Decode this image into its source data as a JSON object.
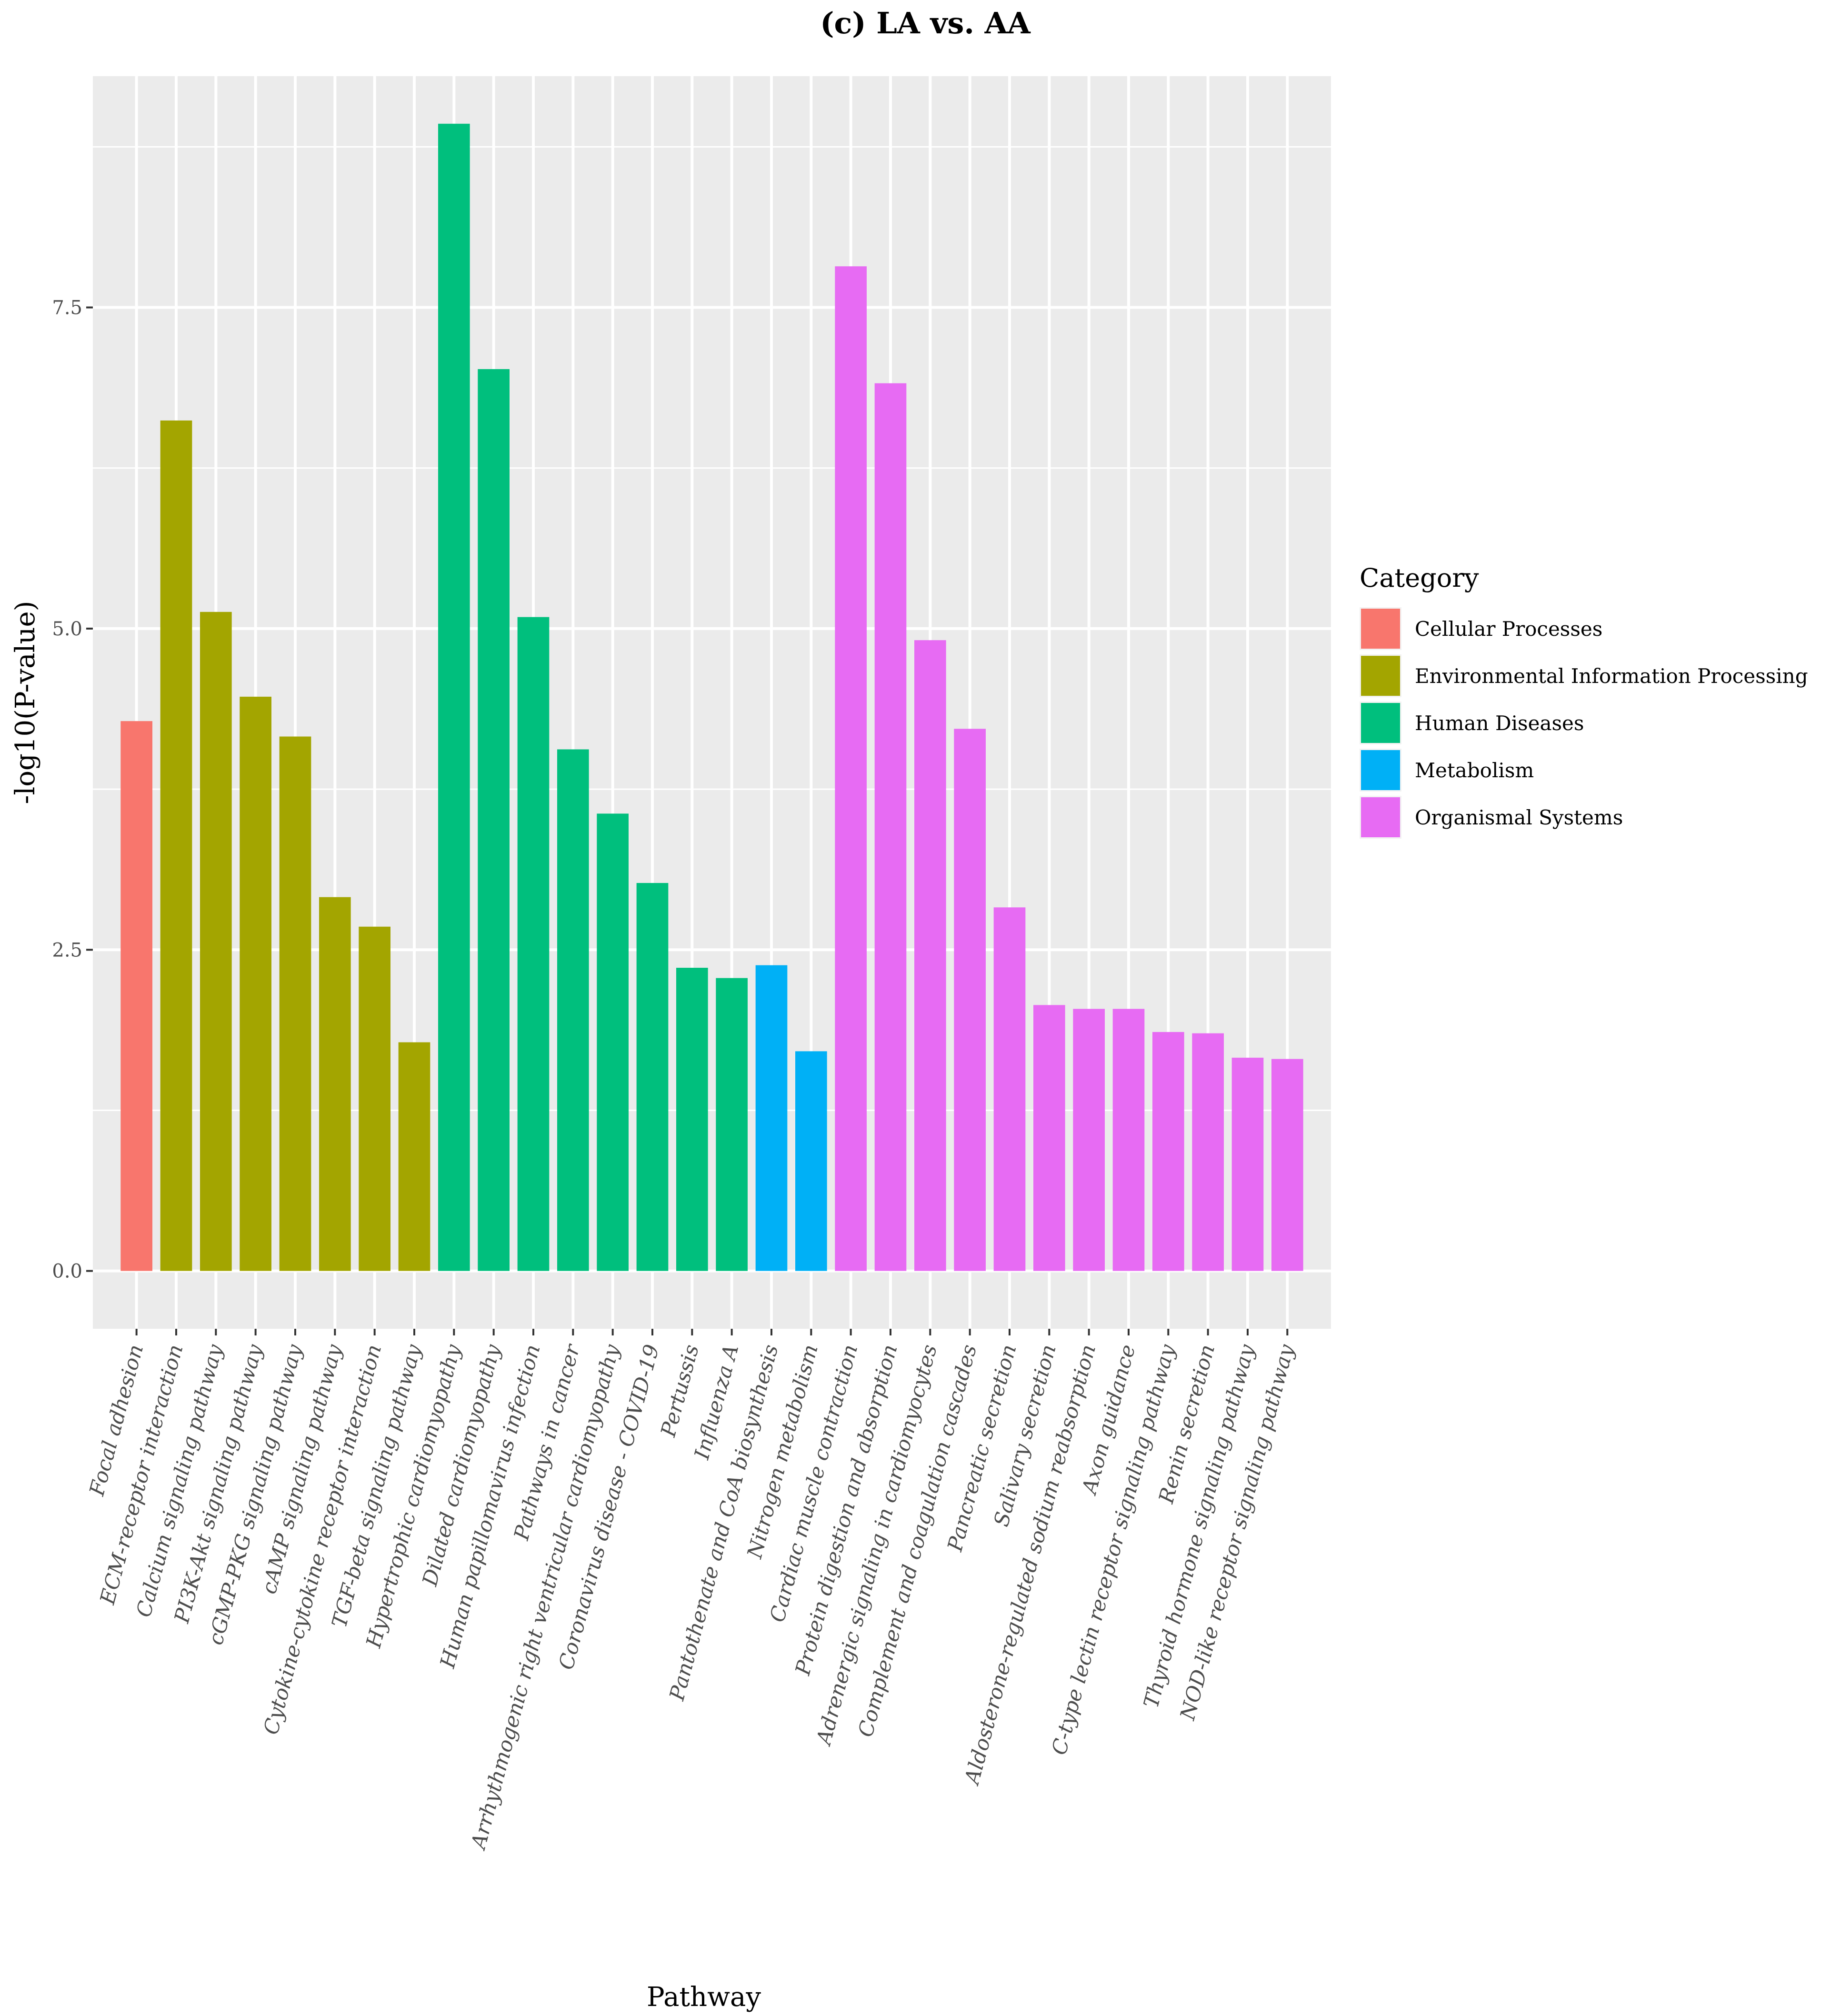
{
  "chart_data": {
    "type": "bar",
    "title": "(c) LA vs. AA",
    "xlabel": "Pathway",
    "ylabel": "-log10(P-value)",
    "ylim": [
      -0.45,
      9.3
    ],
    "yticks": [
      0.0,
      2.5,
      5.0,
      7.5
    ],
    "ytick_labels": [
      "0.0",
      "2.5",
      "5.0",
      "7.5"
    ],
    "grid": true,
    "legend": {
      "title": "Category",
      "placement": "right",
      "entries": [
        {
          "name": "Cellular Processes",
          "color": "#F8766D"
        },
        {
          "name": "Environmental Information Processing",
          "color": "#A3A500"
        },
        {
          "name": "Human Diseases",
          "color": "#00BF7D"
        },
        {
          "name": "Metabolism",
          "color": "#00B0F6"
        },
        {
          "name": "Organismal Systems",
          "color": "#E76BF3"
        }
      ]
    },
    "categories": [
      "Focal adhesion",
      "ECM-receptor interaction",
      "Calcium signaling pathway",
      "PI3K-Akt signaling pathway",
      "cGMP-PKG signaling pathway",
      "cAMP signaling pathway",
      "Cytokine-cytokine receptor interaction",
      "TGF-beta signaling pathway",
      "Hypertrophic cardiomyopathy",
      "Dilated cardiomyopathy",
      "Human papillomavirus infection",
      "Pathways in cancer",
      "Arrhythmogenic right ventricular cardiomyopathy",
      "Coronavirus disease - COVID-19",
      "Pertussis",
      "Influenza A",
      "Pantothenate and CoA biosynthesis",
      "Nitrogen metabolism",
      "Cardiac muscle contraction",
      "Protein digestion and absorption",
      "Adrenergic signaling in cardiomyocytes",
      "Complement and coagulation cascades",
      "Pancreatic secretion",
      "Salivary secretion",
      "Aldosterone-regulated sodium reabsorption",
      "Axon guidance",
      "C-type lectin receptor signaling pathway",
      "Renin secretion",
      "Thyroid hormone signaling pathway",
      "NOD-like receptor signaling pathway"
    ],
    "values": [
      4.28,
      6.62,
      5.13,
      4.47,
      4.16,
      2.91,
      2.68,
      1.78,
      8.93,
      7.02,
      5.09,
      4.06,
      3.56,
      3.02,
      2.36,
      2.28,
      2.38,
      1.71,
      7.82,
      6.91,
      4.91,
      4.22,
      2.83,
      2.07,
      2.04,
      2.04,
      1.86,
      1.85,
      1.66,
      1.65
    ],
    "bar_category": [
      "Cellular Processes",
      "Environmental Information Processing",
      "Environmental Information Processing",
      "Environmental Information Processing",
      "Environmental Information Processing",
      "Environmental Information Processing",
      "Environmental Information Processing",
      "Environmental Information Processing",
      "Human Diseases",
      "Human Diseases",
      "Human Diseases",
      "Human Diseases",
      "Human Diseases",
      "Human Diseases",
      "Human Diseases",
      "Human Diseases",
      "Metabolism",
      "Metabolism",
      "Organismal Systems",
      "Organismal Systems",
      "Organismal Systems",
      "Organismal Systems",
      "Organismal Systems",
      "Organismal Systems",
      "Organismal Systems",
      "Organismal Systems",
      "Organismal Systems",
      "Organismal Systems",
      "Organismal Systems",
      "Organismal Systems"
    ],
    "colors": {
      "panel_background": "#EBEBEB",
      "grid": "#FFFFFF"
    }
  }
}
